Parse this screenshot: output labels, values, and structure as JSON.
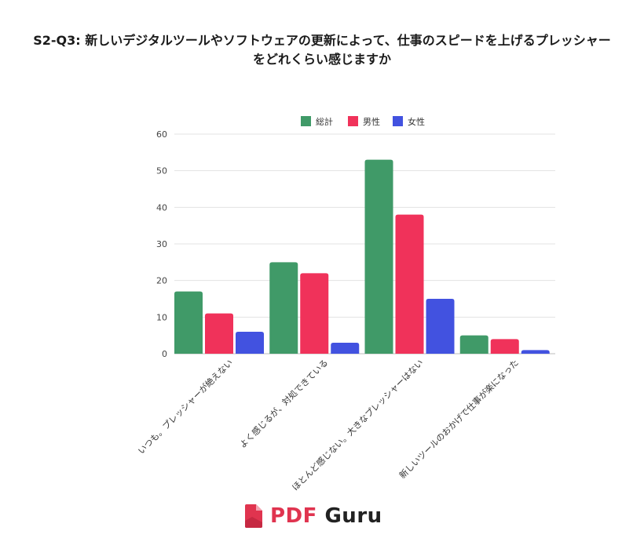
{
  "title": {
    "line1": "S2-Q3: 新しいデジタルツールやソフトウェアの更新によって、仕事のスピードを上げるプレッシャー",
    "line2": "をどれくらい感じますか"
  },
  "chart_data": {
    "type": "bar",
    "title": "S2-Q3: 新しいデジタルツールやソフトウェアの更新によって、仕事のスピードを上げるプレッシャーをどれくらい感じますか",
    "categories": [
      "いつも。プレッシャーが絶えない",
      "よく感じるが、対処できている",
      "ほとんど感じない。大きなプレッシャーはない",
      "新しいツールのおかげで仕事が楽になった"
    ],
    "series": [
      {
        "name": "総計",
        "color": "#409a68",
        "values": [
          17,
          25,
          53,
          5
        ]
      },
      {
        "name": "男性",
        "color": "#f0325a",
        "values": [
          11,
          22,
          38,
          4
        ]
      },
      {
        "name": "女性",
        "color": "#4252e0",
        "values": [
          6,
          3,
          15,
          1
        ]
      }
    ],
    "ylim": [
      0,
      60
    ],
    "yticks": [
      0,
      10,
      20,
      30,
      40,
      50,
      60
    ],
    "grid": true,
    "legend_position": "top",
    "xlabel": "",
    "ylabel": ""
  },
  "logo": {
    "pdf": "PDF",
    "guru": "Guru",
    "icon": "document-icon"
  }
}
